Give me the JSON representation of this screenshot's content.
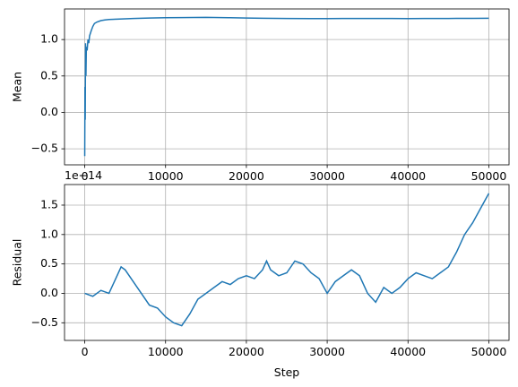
{
  "chart_data": [
    {
      "type": "line",
      "title": "",
      "xlabel": "",
      "ylabel": "Mean",
      "xlim": [
        -2500,
        52500
      ],
      "ylim": [
        -0.72,
        1.42
      ],
      "xticks": [
        0,
        10000,
        20000,
        30000,
        40000,
        50000
      ],
      "yticks": [
        -0.5,
        0.0,
        0.5,
        1.0
      ],
      "ytick_labels": [
        "−0.5",
        "0.0",
        "0.5",
        "1.0"
      ],
      "grid": true,
      "color": "#1f77b4",
      "series": [
        {
          "x": [
            0,
            30,
            60,
            100,
            150,
            200,
            300,
            400,
            500,
            600,
            800,
            1000,
            1200,
            1500,
            2000,
            2500,
            3000,
            4000,
            5000,
            6000,
            8000,
            10000,
            12000,
            15000,
            18000,
            20000,
            22000,
            25000,
            28000,
            30000,
            32000,
            35000,
            38000,
            40000,
            42000,
            45000,
            48000,
            50000
          ],
          "values": [
            -0.6,
            0.35,
            -0.1,
            0.95,
            0.5,
            0.9,
            0.85,
            1.0,
            0.95,
            1.05,
            1.12,
            1.18,
            1.22,
            1.24,
            1.26,
            1.27,
            1.275,
            1.28,
            1.285,
            1.29,
            1.295,
            1.3,
            1.302,
            1.305,
            1.3,
            1.295,
            1.292,
            1.29,
            1.288,
            1.287,
            1.289,
            1.29,
            1.289,
            1.288,
            1.289,
            1.29,
            1.291,
            1.292
          ]
        }
      ]
    },
    {
      "type": "line",
      "title": "",
      "xlabel": "Step",
      "ylabel": "Residual",
      "offset_label": "1e−14",
      "xlim": [
        -2500,
        52500
      ],
      "ylim": [
        -0.8,
        1.85
      ],
      "xticks": [
        0,
        10000,
        20000,
        30000,
        40000,
        50000
      ],
      "yticks": [
        -0.5,
        0.0,
        0.5,
        1.0,
        1.5
      ],
      "ytick_labels": [
        "−0.5",
        "0.0",
        "0.5",
        "1.0",
        "1.5"
      ],
      "grid": true,
      "color": "#1f77b4",
      "series": [
        {
          "x": [
            0,
            1000,
            2000,
            3000,
            4000,
            4500,
            5000,
            6000,
            7000,
            8000,
            9000,
            10000,
            11000,
            12000,
            13000,
            14000,
            15000,
            16000,
            17000,
            18000,
            19000,
            20000,
            21000,
            22000,
            22500,
            23000,
            24000,
            25000,
            26000,
            27000,
            28000,
            29000,
            30000,
            31000,
            32000,
            33000,
            34000,
            35000,
            36000,
            37000,
            38000,
            39000,
            40000,
            41000,
            42000,
            43000,
            44000,
            45000,
            46000,
            47000,
            48000,
            49000,
            50000
          ],
          "values": [
            0.0,
            -0.05,
            0.05,
            0.0,
            0.3,
            0.45,
            0.4,
            0.2,
            0.0,
            -0.2,
            -0.25,
            -0.4,
            -0.5,
            -0.55,
            -0.35,
            -0.1,
            0.0,
            0.1,
            0.2,
            0.15,
            0.25,
            0.3,
            0.25,
            0.4,
            0.55,
            0.4,
            0.3,
            0.35,
            0.55,
            0.5,
            0.35,
            0.25,
            0.0,
            0.2,
            0.3,
            0.4,
            0.3,
            0.0,
            -0.15,
            0.1,
            0.0,
            0.1,
            0.25,
            0.35,
            0.3,
            0.25,
            0.35,
            0.45,
            0.7,
            1.0,
            1.2,
            1.45,
            1.7
          ]
        }
      ]
    }
  ]
}
